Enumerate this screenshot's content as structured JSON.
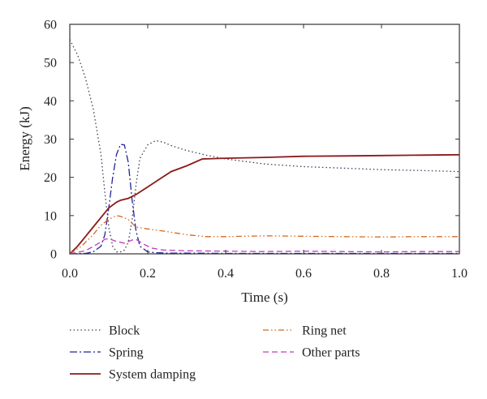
{
  "chart_data": {
    "type": "line",
    "xlabel": "Time (s)",
    "ylabel": "Energy (kJ)",
    "xlim": [
      0,
      1.0
    ],
    "ylim": [
      0,
      60
    ],
    "xticks": [
      "0.0",
      "0.2",
      "0.4",
      "0.6",
      "0.8",
      "1.0"
    ],
    "yticks": [
      "0",
      "10",
      "20",
      "30",
      "40",
      "50",
      "60"
    ],
    "grid": false,
    "legend_position": "bottom",
    "series": [
      {
        "name": "Block",
        "color": "#3c3c5a",
        "dash": "dotted",
        "x": [
          0,
          0.02,
          0.04,
          0.06,
          0.08,
          0.09,
          0.1,
          0.11,
          0.12,
          0.13,
          0.14,
          0.15,
          0.16,
          0.17,
          0.18,
          0.2,
          0.22,
          0.24,
          0.26,
          0.3,
          0.35,
          0.4,
          0.5,
          0.6,
          0.7,
          0.8,
          0.9,
          1.0
        ],
        "y": [
          56,
          52,
          46,
          38,
          26,
          16,
          7,
          2,
          0.5,
          0.5,
          1,
          3,
          9,
          18,
          25,
          28.5,
          29.6,
          29.2,
          28.3,
          27,
          25.8,
          24.8,
          23.5,
          22.8,
          22.4,
          22.0,
          21.8,
          21.5
        ]
      },
      {
        "name": "Spring",
        "color": "#23239a",
        "dash": "dashdot",
        "x": [
          0,
          0.04,
          0.06,
          0.08,
          0.09,
          0.1,
          0.11,
          0.12,
          0.13,
          0.14,
          0.15,
          0.16,
          0.17,
          0.18,
          0.2,
          0.22,
          0.25,
          0.3,
          0.4,
          0.6,
          0.8,
          1.0
        ],
        "y": [
          0,
          0.1,
          0.5,
          2,
          5,
          12,
          20,
          26,
          28.6,
          28.5,
          24,
          14,
          6,
          2,
          0.5,
          0.3,
          0.2,
          0.2,
          0.1,
          0.1,
          0.1,
          0.1
        ]
      },
      {
        "name": "System damping",
        "color": "#8b1a1a",
        "dash": "solid",
        "x": [
          0,
          0.02,
          0.04,
          0.06,
          0.08,
          0.1,
          0.12,
          0.13,
          0.15,
          0.17,
          0.2,
          0.23,
          0.26,
          0.3,
          0.34,
          0.4,
          0.5,
          0.6,
          0.7,
          0.8,
          0.9,
          1.0
        ],
        "y": [
          0,
          2,
          4.5,
          7,
          9.5,
          12,
          13.5,
          14,
          14.5,
          15.5,
          17.5,
          19.5,
          21.5,
          23,
          24.8,
          25,
          25.2,
          25.5,
          25.6,
          25.7,
          25.8,
          25.9
        ]
      },
      {
        "name": "Ring net",
        "color": "#d2691e",
        "dash": "dashdotdot",
        "x": [
          0,
          0.03,
          0.06,
          0.08,
          0.1,
          0.12,
          0.13,
          0.15,
          0.17,
          0.2,
          0.25,
          0.3,
          0.35,
          0.4,
          0.5,
          0.6,
          0.7,
          0.8,
          0.9,
          1.0
        ],
        "y": [
          0,
          2,
          5,
          7.5,
          9,
          10,
          9.8,
          9,
          7,
          6.5,
          5.8,
          5,
          4.5,
          4.5,
          4.7,
          4.6,
          4.5,
          4.4,
          4.5,
          4.5
        ]
      },
      {
        "name": "Other parts",
        "color": "#c03cc0",
        "dash": "dashed",
        "x": [
          0,
          0.04,
          0.07,
          0.09,
          0.1,
          0.12,
          0.14,
          0.16,
          0.17,
          0.19,
          0.21,
          0.24,
          0.3,
          0.4,
          0.5,
          0.6,
          0.7,
          0.8,
          0.9,
          1.0
        ],
        "y": [
          0,
          0.8,
          2.5,
          3.8,
          4,
          3.2,
          2.8,
          3.6,
          3.8,
          2.5,
          1.5,
          1,
          0.8,
          0.7,
          0.6,
          0.7,
          0.6,
          0.5,
          0.6,
          0.6
        ]
      }
    ]
  }
}
